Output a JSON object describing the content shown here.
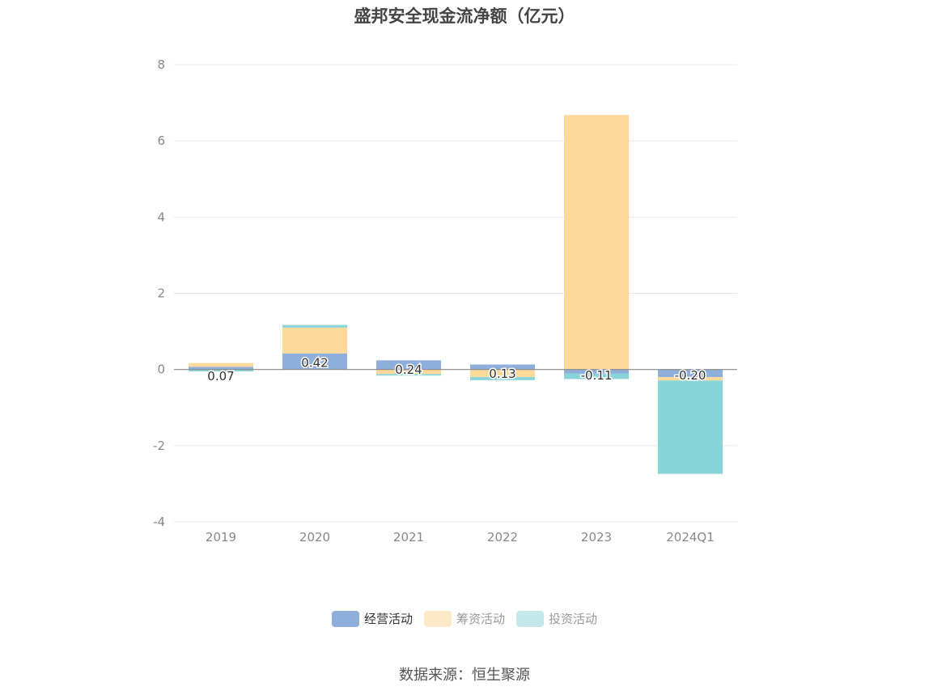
{
  "title": "盛邦安全现金流净额（亿元）",
  "source": "数据来源：恒生聚源",
  "chart_data": {
    "type": "bar",
    "stacked": true,
    "categories": [
      "2019",
      "2020",
      "2021",
      "2022",
      "2023",
      "2024Q1"
    ],
    "series": [
      {
        "name": "经营活动",
        "color": "#8eaedb",
        "values": [
          0.07,
          0.42,
          0.24,
          0.13,
          -0.11,
          -0.2
        ]
      },
      {
        "name": "筹资活动",
        "color": "#fdd89b",
        "values": [
          0.1,
          0.68,
          -0.12,
          -0.2,
          6.68,
          -0.09
        ]
      },
      {
        "name": "投资活动",
        "color": "#88d5d9",
        "values": [
          -0.05,
          0.07,
          -0.04,
          -0.08,
          -0.14,
          -2.45
        ]
      }
    ],
    "data_labels": [
      "0.07",
      "0.42",
      "0.24",
      "0.13",
      "-0.11",
      "-0.20"
    ],
    "ylim": [
      -4,
      8
    ],
    "yticks": [
      "-4",
      "-2",
      "0",
      "2",
      "4",
      "6",
      "8"
    ],
    "ytick_values": [
      -4,
      -2,
      0,
      2,
      4,
      6,
      8
    ],
    "grid": true,
    "legend_position": "bottom"
  },
  "legend": [
    {
      "label": "经营活动",
      "color": "#8eaedb",
      "active": true
    },
    {
      "label": "筹资活动",
      "color": "#fde8c8",
      "active": false
    },
    {
      "label": "投资活动",
      "color": "#c4e8ea",
      "active": false
    }
  ]
}
